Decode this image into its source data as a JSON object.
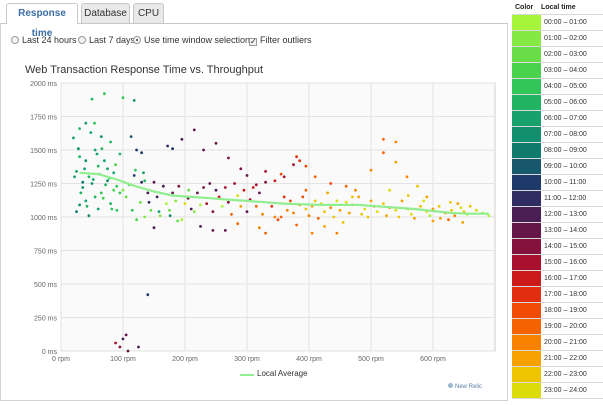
{
  "tabs": [
    {
      "label": "Response time",
      "active": true
    },
    {
      "label": "Database",
      "active": false
    },
    {
      "label": "CPU",
      "active": false
    }
  ],
  "options": {
    "last24": "Last 24 hours",
    "last7": "Last 7 days",
    "window": "Use time window selection",
    "selected": "window",
    "filter": "Filter outliers",
    "filter_checked": true
  },
  "chart_title": "Web Transaction Response Time vs. Throughput",
  "legend_label": "Local Average",
  "brand": "New Relic",
  "color_table": {
    "header_color": "Color",
    "header_time": "Local time",
    "rows": [
      {
        "label": "00:00 – 01:00",
        "color": "#a6f53a"
      },
      {
        "label": "01:00 – 02:00",
        "color": "#86e843"
      },
      {
        "label": "02:00 – 03:00",
        "color": "#68dd48"
      },
      {
        "label": "03:00 – 04:00",
        "color": "#4ad24f"
      },
      {
        "label": "04:00 – 05:00",
        "color": "#31c55a"
      },
      {
        "label": "05:00 – 06:00",
        "color": "#20b463"
      },
      {
        "label": "06:00 – 07:00",
        "color": "#16a26a"
      },
      {
        "label": "07:00 – 08:00",
        "color": "#128f6c"
      },
      {
        "label": "08:00 – 09:00",
        "color": "#0f7b6c"
      },
      {
        "label": "09:00 – 10:00",
        "color": "#17586d"
      },
      {
        "label": "10:00 – 11:00",
        "color": "#1f3a6a"
      },
      {
        "label": "11:00 – 12:00",
        "color": "#2e2c62"
      },
      {
        "label": "12:00 – 13:00",
        "color": "#4a1f55"
      },
      {
        "label": "13:00 – 14:00",
        "color": "#65174a"
      },
      {
        "label": "14:00 – 15:00",
        "color": "#84123c"
      },
      {
        "label": "15:00 – 16:00",
        "color": "#a8102e"
      },
      {
        "label": "16:00 – 17:00",
        "color": "#cc1a1c"
      },
      {
        "label": "17:00 – 18:00",
        "color": "#e22d10"
      },
      {
        "label": "18:00 – 19:00",
        "color": "#f04a05"
      },
      {
        "label": "19:00 – 20:00",
        "color": "#f56400"
      },
      {
        "label": "20:00 – 21:00",
        "color": "#f88200"
      },
      {
        "label": "21:00 – 22:00",
        "color": "#f6a100"
      },
      {
        "label": "22:00 – 23:00",
        "color": "#eec400"
      },
      {
        "label": "23:00 – 24:00",
        "color": "#dcdc0c"
      }
    ]
  },
  "chart_data": {
    "type": "scatter",
    "title": "Web Transaction Response Time vs. Throughput",
    "xlabel": "",
    "ylabel": "",
    "xlim": [
      0,
      700
    ],
    "ylim": [
      0,
      2000
    ],
    "x_ticks": [
      0,
      100,
      200,
      300,
      400,
      500,
      600
    ],
    "x_tick_labels": [
      "0 rpm",
      "100 rpm",
      "200 rpm",
      "300 rpm",
      "400 rpm",
      "500 rpm",
      "600 rpm"
    ],
    "y_ticks": [
      0,
      250,
      500,
      750,
      1000,
      1250,
      1500,
      1750,
      2000
    ],
    "y_tick_labels": [
      "0 ms",
      "250 ms",
      "500 ms",
      "750 ms",
      "1000 ms",
      "1250 ms",
      "1500 ms",
      "1750 ms",
      "2000 ms"
    ],
    "grid": true,
    "local_average": [
      [
        30,
        1330
      ],
      [
        60,
        1320
      ],
      [
        90,
        1280
      ],
      [
        120,
        1230
      ],
      [
        150,
        1190
      ],
      [
        180,
        1160
      ],
      [
        210,
        1150
      ],
      [
        240,
        1140
      ],
      [
        270,
        1130
      ],
      [
        300,
        1120
      ],
      [
        330,
        1110
      ],
      [
        360,
        1100
      ],
      [
        390,
        1095
      ],
      [
        420,
        1090
      ],
      [
        450,
        1090
      ],
      [
        480,
        1090
      ],
      [
        510,
        1080
      ],
      [
        540,
        1070
      ],
      [
        570,
        1060
      ],
      [
        600,
        1045
      ],
      [
        630,
        1030
      ],
      [
        660,
        1025
      ],
      [
        690,
        1025
      ]
    ],
    "points": [
      [
        20,
        1590,
        6
      ],
      [
        25,
        1340,
        6
      ],
      [
        30,
        1450,
        5
      ],
      [
        35,
        1220,
        7
      ],
      [
        40,
        1700,
        6
      ],
      [
        45,
        1300,
        5
      ],
      [
        50,
        1250,
        7
      ],
      [
        55,
        1500,
        6
      ],
      [
        60,
        1380,
        5
      ],
      [
        65,
        1180,
        4
      ],
      [
        70,
        1420,
        6
      ],
      [
        75,
        1270,
        7
      ],
      [
        80,
        1560,
        5
      ],
      [
        85,
        1330,
        6
      ],
      [
        90,
        1230,
        4
      ],
      [
        95,
        1470,
        5
      ],
      [
        50,
        1880,
        5
      ],
      [
        70,
        1920,
        4
      ],
      [
        100,
        1890,
        4
      ],
      [
        30,
        1090,
        7
      ],
      [
        40,
        1120,
        6
      ],
      [
        60,
        1060,
        6
      ],
      [
        80,
        1100,
        5
      ],
      [
        25,
        1040,
        8
      ],
      [
        45,
        1010,
        7
      ],
      [
        35,
        1260,
        8
      ],
      [
        55,
        1150,
        5
      ],
      [
        65,
        1600,
        7
      ],
      [
        75,
        1360,
        6
      ],
      [
        85,
        1200,
        3
      ],
      [
        90,
        1050,
        4
      ],
      [
        40,
        1420,
        7
      ],
      [
        58,
        1470,
        6
      ],
      [
        32,
        1180,
        5
      ],
      [
        48,
        1630,
        6
      ],
      [
        62,
        1320,
        4
      ],
      [
        72,
        1240,
        5
      ],
      [
        78,
        1290,
        4
      ],
      [
        88,
        1390,
        3
      ],
      [
        95,
        1180,
        4
      ],
      [
        28,
        1510,
        7
      ],
      [
        38,
        1360,
        6
      ],
      [
        42,
        1080,
        5
      ],
      [
        52,
        1280,
        6
      ],
      [
        68,
        1140,
        3
      ],
      [
        82,
        1060,
        4
      ],
      [
        22,
        1300,
        6
      ],
      [
        30,
        1660,
        5
      ],
      [
        54,
        1700,
        4
      ],
      [
        66,
        1510,
        5
      ],
      [
        100,
        1200,
        1
      ],
      [
        105,
        1150,
        2
      ],
      [
        110,
        1240,
        3
      ],
      [
        115,
        1050,
        4
      ],
      [
        118,
        1310,
        10
      ],
      [
        122,
        980,
        3
      ],
      [
        128,
        1110,
        2
      ],
      [
        130,
        1260,
        11
      ],
      [
        135,
        1000,
        1
      ],
      [
        140,
        1180,
        12
      ],
      [
        142,
        1110,
        11
      ],
      [
        145,
        1050,
        2
      ],
      [
        150,
        1260,
        13
      ],
      [
        155,
        1150,
        12
      ],
      [
        160,
        1010,
        1
      ],
      [
        165,
        1230,
        12
      ],
      [
        170,
        1100,
        0
      ],
      [
        172,
        1530,
        11
      ],
      [
        175,
        1050,
        2
      ],
      [
        180,
        1180,
        13
      ],
      [
        185,
        1120,
        1
      ],
      [
        190,
        1230,
        14
      ],
      [
        195,
        980,
        0
      ],
      [
        200,
        1100,
        23
      ],
      [
        205,
        1140,
        13
      ],
      [
        210,
        1060,
        12
      ],
      [
        215,
        1040,
        1
      ],
      [
        220,
        1180,
        13
      ],
      [
        225,
        1090,
        0
      ],
      [
        230,
        1220,
        14
      ],
      [
        235,
        1100,
        15
      ],
      [
        240,
        1250,
        13
      ],
      [
        245,
        1040,
        14
      ],
      [
        250,
        1200,
        12
      ],
      [
        255,
        1150,
        16
      ],
      [
        260,
        1080,
        0
      ],
      [
        265,
        1220,
        15
      ],
      [
        270,
        1110,
        14
      ],
      [
        275,
        1020,
        19
      ],
      [
        280,
        1250,
        15
      ],
      [
        285,
        1160,
        23
      ],
      [
        290,
        1080,
        21
      ],
      [
        295,
        1200,
        16
      ],
      [
        300,
        1040,
        13
      ],
      [
        305,
        1130,
        15
      ],
      [
        310,
        1220,
        16
      ],
      [
        315,
        1080,
        19
      ],
      [
        320,
        1180,
        13
      ],
      [
        325,
        1020,
        20
      ],
      [
        330,
        1260,
        14
      ],
      [
        113,
        1600,
        9
      ],
      [
        122,
        1500,
        10
      ],
      [
        133,
        1330,
        6
      ],
      [
        130,
        1480,
        10
      ],
      [
        150,
        920,
        12
      ],
      [
        180,
        1510,
        10
      ],
      [
        195,
        1580,
        12
      ],
      [
        215,
        1650,
        13
      ],
      [
        230,
        1500,
        13
      ],
      [
        250,
        1550,
        13
      ],
      [
        270,
        1440,
        14
      ],
      [
        290,
        1360,
        14
      ],
      [
        300,
        1310,
        13
      ],
      [
        315,
        1240,
        15
      ],
      [
        330,
        1340,
        15
      ],
      [
        345,
        1270,
        16
      ],
      [
        360,
        1300,
        15
      ],
      [
        375,
        1390,
        15
      ],
      [
        385,
        1420,
        17
      ],
      [
        120,
        1350,
        4
      ],
      [
        118,
        1870,
        7
      ],
      [
        135,
        1270,
        5
      ],
      [
        158,
        1040,
        6
      ],
      [
        176,
        1010,
        7
      ],
      [
        188,
        970,
        2
      ],
      [
        206,
        1200,
        2
      ],
      [
        225,
        930,
        12
      ],
      [
        245,
        900,
        13
      ],
      [
        265,
        900,
        13
      ],
      [
        285,
        950,
        19
      ],
      [
        100,
        90,
        12
      ],
      [
        105,
        120,
        13
      ],
      [
        95,
        30,
        14
      ],
      [
        108,
        0,
        13
      ],
      [
        88,
        60,
        15
      ],
      [
        140,
        420,
        10
      ],
      [
        125,
        30,
        12
      ],
      [
        340,
        1080,
        17
      ],
      [
        350,
        980,
        18
      ],
      [
        355,
        1000,
        19
      ],
      [
        360,
        1150,
        17
      ],
      [
        365,
        1050,
        20
      ],
      [
        370,
        1120,
        18
      ],
      [
        375,
        1030,
        20
      ],
      [
        380,
        940,
        19
      ],
      [
        385,
        1090,
        21
      ],
      [
        390,
        1150,
        18
      ],
      [
        395,
        1060,
        22
      ],
      [
        400,
        1010,
        20
      ],
      [
        405,
        1080,
        21
      ],
      [
        410,
        1120,
        22
      ],
      [
        415,
        990,
        19
      ],
      [
        420,
        1100,
        23
      ],
      [
        425,
        1040,
        22
      ],
      [
        430,
        1180,
        21
      ],
      [
        435,
        1070,
        20
      ],
      [
        440,
        1000,
        22
      ],
      [
        445,
        1120,
        23
      ],
      [
        450,
        1050,
        21
      ],
      [
        455,
        960,
        22
      ],
      [
        460,
        1110,
        23
      ],
      [
        465,
        1030,
        21
      ],
      [
        470,
        1090,
        20
      ],
      [
        480,
        1150,
        21
      ],
      [
        485,
        1020,
        22
      ],
      [
        490,
        1060,
        23
      ],
      [
        495,
        1000,
        22
      ],
      [
        500,
        1120,
        21
      ],
      [
        505,
        1080,
        20
      ],
      [
        510,
        1040,
        23
      ],
      [
        520,
        1100,
        22
      ],
      [
        525,
        1010,
        21
      ],
      [
        530,
        1070,
        20
      ],
      [
        540,
        1050,
        23
      ],
      [
        545,
        1000,
        22
      ],
      [
        550,
        1120,
        21
      ],
      [
        560,
        1060,
        22
      ],
      [
        565,
        1020,
        23
      ],
      [
        570,
        990,
        21
      ],
      [
        580,
        1080,
        22
      ],
      [
        590,
        1040,
        23
      ],
      [
        595,
        1010,
        0
      ],
      [
        600,
        1060,
        21
      ],
      [
        610,
        1080,
        22
      ],
      [
        620,
        1030,
        20
      ],
      [
        625,
        980,
        19
      ],
      [
        630,
        1050,
        22
      ],
      [
        635,
        1010,
        20
      ],
      [
        640,
        1100,
        21
      ],
      [
        645,
        1070,
        23
      ],
      [
        650,
        1040,
        22
      ],
      [
        655,
        1020,
        0
      ],
      [
        660,
        1080,
        22
      ],
      [
        670,
        1050,
        23
      ],
      [
        680,
        1030,
        0
      ],
      [
        690,
        1010,
        0
      ],
      [
        380,
        1450,
        17
      ],
      [
        395,
        1380,
        18
      ],
      [
        410,
        1300,
        19
      ],
      [
        435,
        1250,
        18
      ],
      [
        460,
        1230,
        19
      ],
      [
        475,
        1200,
        20
      ],
      [
        500,
        1350,
        20
      ],
      [
        520,
        1480,
        19
      ],
      [
        540,
        1410,
        21
      ],
      [
        558,
        1300,
        20
      ],
      [
        575,
        1230,
        22
      ],
      [
        590,
        1150,
        21
      ],
      [
        600,
        970,
        21
      ],
      [
        612,
        990,
        21
      ],
      [
        628,
        1110,
        22
      ],
      [
        648,
        960,
        21
      ],
      [
        405,
        880,
        20
      ],
      [
        425,
        930,
        21
      ],
      [
        445,
        880,
        20
      ],
      [
        330,
        880,
        19
      ],
      [
        320,
        920,
        20
      ],
      [
        345,
        1000,
        20
      ],
      [
        470,
        1150,
        22
      ],
      [
        530,
        1200,
        23
      ],
      [
        560,
        1160,
        22
      ],
      [
        585,
        1120,
        23
      ],
      [
        520,
        1580,
        19
      ],
      [
        540,
        1560,
        20
      ],
      [
        355,
        1320,
        18
      ],
      [
        395,
        1200,
        19
      ]
    ]
  }
}
